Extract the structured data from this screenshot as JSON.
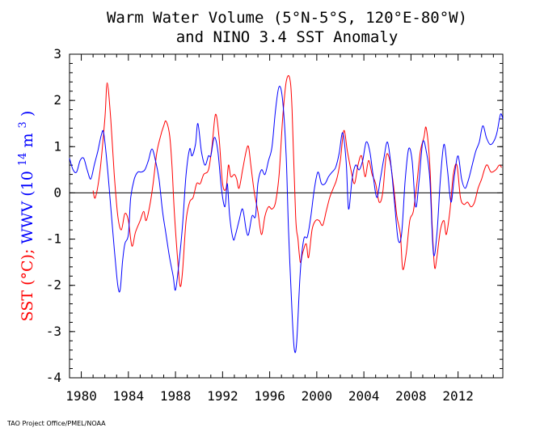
{
  "chart_data": {
    "type": "line",
    "title": "Warm Water Volume (5°N-5°S, 120°E-80°W)",
    "subtitle": "and NINO 3.4 SST Anomaly",
    "ylabel_parts": {
      "sst": "SST (°C);",
      "wwv": "WWV (10",
      "exp": "14",
      "m": " m",
      "cube": "3",
      "close": ")"
    },
    "xlim": [
      1979,
      2015.8
    ],
    "ylim": [
      -4,
      3
    ],
    "grid": false,
    "zero_line": true,
    "x_ticks": [
      "1980",
      "1984",
      "1988",
      "1992",
      "1996",
      "2000",
      "2004",
      "2008",
      "2012"
    ],
    "y_ticks": [
      "3",
      "2",
      "1",
      "0",
      "-1",
      "-2",
      "-3",
      "-4"
    ],
    "series": [
      {
        "name": "SST",
        "color": "#ff0000",
        "points": [
          [
            1981.0,
            0.05
          ],
          [
            1981.2,
            -0.1
          ],
          [
            1981.6,
            0.5
          ],
          [
            1982.0,
            1.6
          ],
          [
            1982.2,
            2.38
          ],
          [
            1982.5,
            1.6
          ],
          [
            1982.8,
            0.4
          ],
          [
            1983.1,
            -0.5
          ],
          [
            1983.4,
            -0.8
          ],
          [
            1983.7,
            -0.45
          ],
          [
            1984.0,
            -0.6
          ],
          [
            1984.3,
            -1.15
          ],
          [
            1984.6,
            -0.85
          ],
          [
            1985.0,
            -0.6
          ],
          [
            1985.3,
            -0.4
          ],
          [
            1985.5,
            -0.6
          ],
          [
            1985.8,
            -0.3
          ],
          [
            1986.1,
            0.2
          ],
          [
            1986.4,
            0.85
          ],
          [
            1986.7,
            1.2
          ],
          [
            1987.0,
            1.45
          ],
          [
            1987.2,
            1.55
          ],
          [
            1987.5,
            1.25
          ],
          [
            1987.7,
            0.6
          ],
          [
            1987.9,
            -0.4
          ],
          [
            1988.2,
            -1.5
          ],
          [
            1988.4,
            -2.02
          ],
          [
            1988.6,
            -1.7
          ],
          [
            1988.9,
            -0.6
          ],
          [
            1989.2,
            -0.2
          ],
          [
            1989.5,
            -0.1
          ],
          [
            1989.8,
            0.2
          ],
          [
            1990.1,
            0.2
          ],
          [
            1990.4,
            0.4
          ],
          [
            1990.8,
            0.5
          ],
          [
            1991.1,
            1.0
          ],
          [
            1991.4,
            1.7
          ],
          [
            1991.7,
            1.2
          ],
          [
            1992.0,
            0.2
          ],
          [
            1992.3,
            0.1
          ],
          [
            1992.5,
            0.6
          ],
          [
            1992.7,
            0.35
          ],
          [
            1993.0,
            0.4
          ],
          [
            1993.2,
            0.3
          ],
          [
            1993.4,
            0.1
          ],
          [
            1993.7,
            0.5
          ],
          [
            1994.0,
            0.9
          ],
          [
            1994.2,
            1.0
          ],
          [
            1994.4,
            0.6
          ],
          [
            1994.7,
            0.0
          ],
          [
            1995.0,
            -0.4
          ],
          [
            1995.3,
            -0.9
          ],
          [
            1995.6,
            -0.5
          ],
          [
            1995.9,
            -0.3
          ],
          [
            1996.2,
            -0.35
          ],
          [
            1996.5,
            -0.2
          ],
          [
            1996.8,
            0.4
          ],
          [
            1997.1,
            1.6
          ],
          [
            1997.4,
            2.4
          ],
          [
            1997.7,
            2.48
          ],
          [
            1997.9,
            1.8
          ],
          [
            1998.2,
            -0.5
          ],
          [
            1998.4,
            -1.0
          ],
          [
            1998.6,
            -1.5
          ],
          [
            1998.8,
            -1.3
          ],
          [
            1999.1,
            -1.1
          ],
          [
            1999.3,
            -1.4
          ],
          [
            1999.6,
            -0.8
          ],
          [
            1999.9,
            -0.6
          ],
          [
            2000.2,
            -0.6
          ],
          [
            2000.5,
            -0.7
          ],
          [
            2000.8,
            -0.4
          ],
          [
            2001.1,
            -0.1
          ],
          [
            2001.4,
            0.1
          ],
          [
            2001.7,
            0.3
          ],
          [
            2002.0,
            0.7
          ],
          [
            2002.3,
            1.35
          ],
          [
            2002.6,
            0.9
          ],
          [
            2002.9,
            0.5
          ],
          [
            2003.2,
            0.2
          ],
          [
            2003.5,
            0.6
          ],
          [
            2003.8,
            0.8
          ],
          [
            2004.1,
            0.35
          ],
          [
            2004.4,
            0.7
          ],
          [
            2004.7,
            0.4
          ],
          [
            2005.0,
            0.2
          ],
          [
            2005.3,
            -0.2
          ],
          [
            2005.6,
            0.0
          ],
          [
            2005.9,
            0.8
          ],
          [
            2006.2,
            0.7
          ],
          [
            2006.5,
            0.2
          ],
          [
            2006.8,
            -0.5
          ],
          [
            2007.1,
            -0.9
          ],
          [
            2007.3,
            -1.65
          ],
          [
            2007.6,
            -1.3
          ],
          [
            2007.9,
            -0.6
          ],
          [
            2008.2,
            -0.4
          ],
          [
            2008.5,
            0.2
          ],
          [
            2008.8,
            0.9
          ],
          [
            2009.1,
            1.2
          ],
          [
            2009.3,
            1.4
          ],
          [
            2009.6,
            0.6
          ],
          [
            2009.8,
            -0.7
          ],
          [
            2010.0,
            -1.6
          ],
          [
            2010.2,
            -1.4
          ],
          [
            2010.5,
            -0.8
          ],
          [
            2010.8,
            -0.6
          ],
          [
            2011.0,
            -0.9
          ],
          [
            2011.3,
            -0.4
          ],
          [
            2011.6,
            0.4
          ],
          [
            2011.9,
            0.6
          ],
          [
            2012.2,
            -0.1
          ],
          [
            2012.5,
            -0.25
          ],
          [
            2012.8,
            -0.2
          ],
          [
            2013.1,
            -0.3
          ],
          [
            2013.4,
            -0.2
          ],
          [
            2013.7,
            0.1
          ],
          [
            2014.0,
            0.3
          ],
          [
            2014.3,
            0.55
          ],
          [
            2014.5,
            0.6
          ],
          [
            2014.8,
            0.45
          ],
          [
            2015.2,
            0.5
          ],
          [
            2015.5,
            0.6
          ],
          [
            2015.7,
            0.55
          ]
        ]
      },
      {
        "name": "WWV",
        "color": "#0000ff",
        "points": [
          [
            1979.0,
            0.75
          ],
          [
            1979.3,
            0.5
          ],
          [
            1979.6,
            0.45
          ],
          [
            1979.9,
            0.7
          ],
          [
            1980.2,
            0.75
          ],
          [
            1980.5,
            0.5
          ],
          [
            1980.8,
            0.3
          ],
          [
            1981.1,
            0.6
          ],
          [
            1981.4,
            0.9
          ],
          [
            1981.7,
            1.25
          ],
          [
            1981.9,
            1.3
          ],
          [
            1982.2,
            0.6
          ],
          [
            1982.5,
            -0.3
          ],
          [
            1982.8,
            -1.2
          ],
          [
            1983.1,
            -2.0
          ],
          [
            1983.3,
            -2.1
          ],
          [
            1983.5,
            -1.5
          ],
          [
            1983.7,
            -1.1
          ],
          [
            1984.0,
            -0.9
          ],
          [
            1984.2,
            -0.1
          ],
          [
            1984.5,
            0.3
          ],
          [
            1984.8,
            0.45
          ],
          [
            1985.1,
            0.45
          ],
          [
            1985.4,
            0.5
          ],
          [
            1985.7,
            0.7
          ],
          [
            1986.0,
            0.95
          ],
          [
            1986.3,
            0.7
          ],
          [
            1986.6,
            0.3
          ],
          [
            1986.9,
            -0.4
          ],
          [
            1987.2,
            -0.9
          ],
          [
            1987.5,
            -1.4
          ],
          [
            1987.8,
            -1.8
          ],
          [
            1988.0,
            -2.1
          ],
          [
            1988.3,
            -1.5
          ],
          [
            1988.6,
            -0.7
          ],
          [
            1988.9,
            0.4
          ],
          [
            1989.2,
            0.95
          ],
          [
            1989.4,
            0.8
          ],
          [
            1989.7,
            1.05
          ],
          [
            1989.9,
            1.5
          ],
          [
            1990.2,
            0.9
          ],
          [
            1990.5,
            0.6
          ],
          [
            1990.8,
            0.8
          ],
          [
            1991.0,
            0.8
          ],
          [
            1991.3,
            1.2
          ],
          [
            1991.6,
            0.9
          ],
          [
            1991.9,
            0.1
          ],
          [
            1992.2,
            -0.3
          ],
          [
            1992.4,
            0.2
          ],
          [
            1992.6,
            -0.5
          ],
          [
            1992.9,
            -1.0
          ],
          [
            1993.1,
            -0.9
          ],
          [
            1993.4,
            -0.6
          ],
          [
            1993.7,
            -0.35
          ],
          [
            1994.0,
            -0.8
          ],
          [
            1994.2,
            -0.9
          ],
          [
            1994.5,
            -0.5
          ],
          [
            1994.8,
            -0.5
          ],
          [
            1995.0,
            0.2
          ],
          [
            1995.3,
            0.5
          ],
          [
            1995.6,
            0.4
          ],
          [
            1995.9,
            0.7
          ],
          [
            1996.2,
            1.0
          ],
          [
            1996.5,
            1.8
          ],
          [
            1996.8,
            2.3
          ],
          [
            1997.1,
            2.0
          ],
          [
            1997.4,
            0.8
          ],
          [
            1997.6,
            -0.8
          ],
          [
            1997.9,
            -2.6
          ],
          [
            1998.1,
            -3.4
          ],
          [
            1998.3,
            -3.2
          ],
          [
            1998.6,
            -1.7
          ],
          [
            1998.9,
            -1.0
          ],
          [
            1999.2,
            -0.95
          ],
          [
            1999.5,
            -0.5
          ],
          [
            1999.8,
            0.1
          ],
          [
            2000.1,
            0.45
          ],
          [
            2000.4,
            0.2
          ],
          [
            2000.7,
            0.2
          ],
          [
            2001.0,
            0.35
          ],
          [
            2001.3,
            0.45
          ],
          [
            2001.6,
            0.55
          ],
          [
            2001.9,
            0.85
          ],
          [
            2002.2,
            1.3
          ],
          [
            2002.5,
            0.65
          ],
          [
            2002.7,
            -0.35
          ],
          [
            2003.0,
            0.3
          ],
          [
            2003.3,
            0.6
          ],
          [
            2003.6,
            0.5
          ],
          [
            2003.9,
            0.7
          ],
          [
            2004.2,
            1.1
          ],
          [
            2004.5,
            0.9
          ],
          [
            2004.8,
            0.35
          ],
          [
            2005.1,
            -0.1
          ],
          [
            2005.4,
            0.3
          ],
          [
            2005.7,
            0.75
          ],
          [
            2006.0,
            1.1
          ],
          [
            2006.3,
            0.6
          ],
          [
            2006.6,
            -0.2
          ],
          [
            2006.9,
            -1.0
          ],
          [
            2007.2,
            -0.9
          ],
          [
            2007.5,
            0.25
          ],
          [
            2007.8,
            0.95
          ],
          [
            2008.1,
            0.7
          ],
          [
            2008.4,
            -0.3
          ],
          [
            2008.7,
            0.3
          ],
          [
            2009.0,
            1.1
          ],
          [
            2009.3,
            0.9
          ],
          [
            2009.6,
            0.3
          ],
          [
            2009.9,
            -1.3
          ],
          [
            2010.2,
            -0.9
          ],
          [
            2010.5,
            0.3
          ],
          [
            2010.8,
            1.05
          ],
          [
            2011.1,
            0.5
          ],
          [
            2011.4,
            -0.2
          ],
          [
            2011.7,
            0.4
          ],
          [
            2012.0,
            0.8
          ],
          [
            2012.3,
            0.3
          ],
          [
            2012.6,
            0.1
          ],
          [
            2012.9,
            0.3
          ],
          [
            2013.2,
            0.6
          ],
          [
            2013.5,
            0.9
          ],
          [
            2013.8,
            1.1
          ],
          [
            2014.1,
            1.45
          ],
          [
            2014.4,
            1.2
          ],
          [
            2014.7,
            1.05
          ],
          [
            2015.0,
            1.1
          ],
          [
            2015.3,
            1.3
          ],
          [
            2015.6,
            1.7
          ],
          [
            2015.8,
            1.6
          ]
        ]
      }
    ]
  },
  "credit": "TAO Project Office/PMEL/NOAA"
}
